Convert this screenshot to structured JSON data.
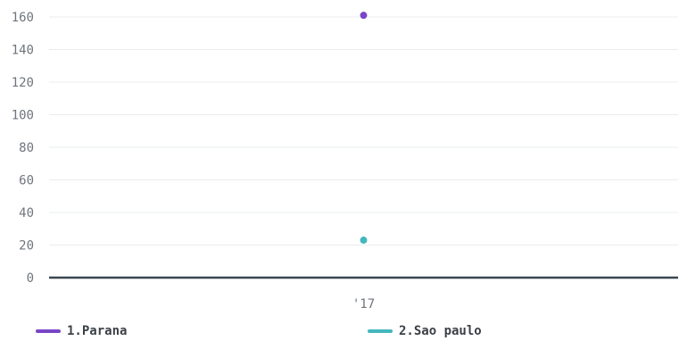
{
  "chart_data": {
    "type": "scatter",
    "title": "",
    "xlabel": "",
    "ylabel": "",
    "categories": [
      "'17"
    ],
    "ylim": [
      0,
      160
    ],
    "yticks": [
      0,
      20,
      40,
      60,
      80,
      100,
      120,
      140,
      160
    ],
    "grid": true,
    "legend_position": "bottom",
    "series": [
      {
        "name": "1.Parana",
        "color": "#7a45c7",
        "values": [
          161
        ]
      },
      {
        "name": "2.Sao paulo",
        "color": "#43b7bd",
        "values": [
          23
        ]
      }
    ]
  }
}
